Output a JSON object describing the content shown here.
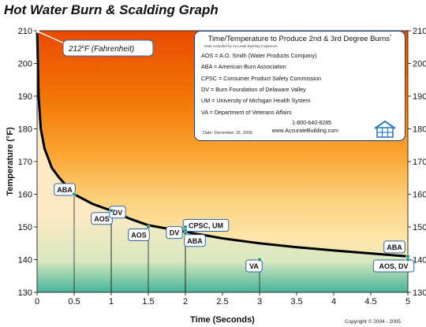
{
  "title": "Hot Water Burn & Scalding Graph",
  "legend": {
    "title": "Time/Temperature to Produce 2nd & 3rd Degree Burns",
    "title_mark": "*",
    "subtitle": "Data compiled by Accurate Building Inspectors",
    "items": [
      "AOS = A.O. Smith (Water Products Company)",
      "ABA = American Burn Association",
      "CPSC = Consumer Product Safety Commission",
      "DV = Burn Foundation of Delaware Valley",
      "UM = University of Michigan Health System",
      "VA = Department of Veterans Affairs"
    ],
    "date": "Date: December 15, 2005",
    "phone": "1-800-640-8285",
    "website": "www.AccurateBuilding.com"
  },
  "copyright": "Copyright © 2004 - 2005",
  "chart_data": {
    "type": "line",
    "title": "Hot Water Burn & Scalding Graph",
    "xlabel": "Time (Seconds)",
    "ylabel": "Temperature (°F)",
    "xlim": [
      0,
      5
    ],
    "ylim": [
      130,
      210
    ],
    "x_ticks": [
      "0",
      "0.5",
      "1",
      "1.5",
      "2",
      "2.5",
      "3",
      "3.5",
      "4",
      "4.5",
      "5"
    ],
    "y_ticks": [
      "130",
      "140",
      "150",
      "160",
      "170",
      "180",
      "190",
      "200",
      "210"
    ],
    "y_ticks_right": true,
    "grid": false,
    "background": "vertical gradient: orange-red at top to yellow to green at bottom",
    "curve": {
      "x": [
        0.0,
        0.02,
        0.05,
        0.1,
        0.2,
        0.3,
        0.5,
        0.75,
        1.0,
        1.25,
        1.5,
        2.0,
        2.5,
        3.0,
        3.5,
        4.0,
        4.5,
        5.0
      ],
      "y": [
        210,
        190,
        180,
        174,
        168,
        165,
        160,
        157,
        155,
        152.5,
        150.5,
        148.5,
        146.5,
        145,
        143.8,
        142.8,
        141.9,
        141
      ]
    },
    "annotation_212": {
      "text": "212",
      "sup": "o",
      "suffix": "F (Fahrenheit)",
      "x": 0,
      "y": 212
    },
    "data_points": [
      {
        "source": "ABA",
        "x": 0.5,
        "y": 160
      },
      {
        "source": "AOS",
        "x": 1,
        "y": 155
      },
      {
        "source": "DV",
        "x": 1,
        "y": 155
      },
      {
        "source": "AOS",
        "x": 1.5,
        "y": 150
      },
      {
        "source": "CPSC, UM",
        "x": 2,
        "y": 150
      },
      {
        "source": "DV",
        "x": 2,
        "y": 149
      },
      {
        "source": "ABA",
        "x": 2,
        "y": 148
      },
      {
        "source": "VA",
        "x": 3,
        "y": 140
      },
      {
        "source": "ABA",
        "x": 5,
        "y": 141
      },
      {
        "source": "AOS, DV",
        "x": 5,
        "y": 140
      }
    ],
    "colors": {
      "curve": "#000000",
      "point": "#1a8f78",
      "label_border": "#2f63a8",
      "legend_border": "#1f3f7a"
    }
  }
}
